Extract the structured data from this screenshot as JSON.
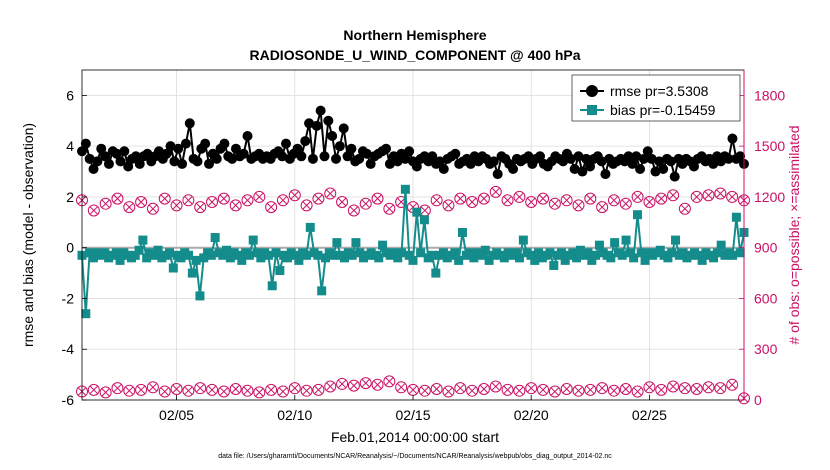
{
  "chart_data": {
    "type": "line",
    "title": "Northern Hemisphere",
    "subtitle": "RADIOSONDE_U_WIND_COMPONENT @ 400 hPa",
    "xlabel": "Feb.01,2014 00:00:00 start",
    "ylabel_left": "rmse and bias (model - observation)",
    "ylabel_right": "# of obs: o=possible; ×=assimilated",
    "footer": "data file: /Users/gharamti/Documents/NCAR/Reanalysis/~/Documents/NCAR/Reanalysis/webpub/obs_diag_output_2014-02.nc",
    "xlim": [
      1,
      29
    ],
    "ylim_left": [
      -6,
      7
    ],
    "ylim_right": [
      0,
      1950
    ],
    "x_ticks": [
      5,
      10,
      15,
      20,
      25
    ],
    "x_tick_labels": [
      "02/05",
      "02/10",
      "02/15",
      "02/20",
      "02/25"
    ],
    "y_ticks_left": [
      -6,
      -4,
      -2,
      0,
      2,
      4,
      6
    ],
    "y_ticks_right": [
      0,
      300,
      600,
      900,
      1200,
      1500,
      1800
    ],
    "grid": true,
    "legend_position": "top-right",
    "colors": {
      "rmse": "#000000",
      "bias": "#158c8c",
      "obs": "#cc1166",
      "zero_line": "#aaaaaa"
    },
    "series": [
      {
        "name": "rmse",
        "legend": "rmse pr=3.5308",
        "values": [
          3.8,
          4.1,
          3.5,
          3.1,
          3.4,
          3.9,
          3.6,
          3.3,
          3.8,
          3.7,
          3.4,
          3.8,
          3.2,
          3.5,
          3.6,
          3.3,
          3.6,
          3.7,
          3.4,
          3.6,
          3.8,
          3.5,
          3.7,
          4.0,
          3.4,
          3.9,
          3.3,
          4.1,
          4.9,
          3.5,
          3.4,
          3.9,
          4.1,
          3.3,
          3.7,
          3.5,
          3.9,
          4.1,
          3.6,
          3.5,
          3.9,
          3.6,
          3.7,
          4.4,
          3.5,
          3.6,
          3.7,
          3.5,
          3.6,
          3.5,
          3.7,
          3.8,
          3.6,
          4.1,
          3.5,
          3.7,
          3.9,
          3.6,
          4.2,
          4.9,
          3.5,
          4.8,
          5.4,
          3.6,
          5.0,
          4.4,
          3.5,
          4.0,
          4.7,
          3.6,
          3.9,
          3.4,
          3.5,
          3.8,
          3.7,
          3.3,
          3.6,
          3.7,
          3.8,
          3.9,
          3.3,
          3.6,
          3.4,
          3.7,
          3.5,
          3.8,
          3.4,
          3.2,
          3.5,
          3.6,
          3.4,
          3.6,
          3.3,
          3.4,
          3.1,
          3.5,
          3.6,
          3.7,
          3.3,
          3.4,
          3.5,
          3.3,
          3.6,
          3.4,
          3.6,
          3.5,
          3.3,
          3.4,
          2.9,
          3.6,
          3.5,
          3.3,
          3.1,
          3.5,
          3.4,
          3.5,
          3.6,
          3.3,
          3.5,
          3.6,
          3.3,
          3.2,
          3.4,
          3.6,
          3.5,
          3.4,
          3.7,
          3.5,
          3.1,
          3.6,
          3.0,
          3.5,
          3.2,
          3.5,
          3.6,
          3.4,
          2.9,
          3.5,
          3.3,
          3.4,
          3.5,
          3.4,
          3.6,
          3.3,
          3.6,
          3.1,
          3.5,
          3.8,
          3.5,
          3.0,
          3.4,
          3.1,
          3.5,
          3.4,
          2.8,
          3.5,
          3.3,
          3.5,
          3.4,
          3.2,
          3.5,
          3.6,
          3.4,
          3.5,
          3.3,
          3.6,
          3.4,
          3.6,
          3.5,
          4.3,
          3.5,
          3.6,
          3.3
        ]
      },
      {
        "name": "bias",
        "legend": "bias pr=-0.15459",
        "values": [
          -0.3,
          -2.6,
          -0.2,
          -0.4,
          -0.2,
          -0.3,
          -0.2,
          -0.4,
          -0.3,
          -0.2,
          -0.5,
          -0.2,
          -0.3,
          -0.4,
          -0.3,
          -0.1,
          0.3,
          -0.4,
          -0.2,
          -0.3,
          -0.1,
          -0.4,
          -0.3,
          -0.2,
          -0.8,
          -0.3,
          -0.4,
          -0.2,
          -0.3,
          -1.0,
          -0.5,
          -1.9,
          -0.4,
          -0.2,
          -0.3,
          0.4,
          -0.2,
          -0.3,
          -0.1,
          -0.4,
          -0.2,
          -0.3,
          -0.5,
          -0.2,
          -0.3,
          0.3,
          -0.2,
          -0.4,
          -0.2,
          -0.3,
          -1.5,
          -0.2,
          -0.9,
          -0.3,
          -0.4,
          -0.2,
          -0.3,
          -0.5,
          -0.2,
          -0.3,
          0.8,
          -0.2,
          -0.3,
          -1.7,
          -0.4,
          -0.2,
          -0.3,
          0.2,
          -0.3,
          -0.4,
          -0.2,
          -0.3,
          0.2,
          -0.2,
          -0.4,
          -0.3,
          -0.2,
          -0.3,
          -0.4,
          0.1,
          -0.2,
          -0.3,
          -0.2,
          -0.4,
          -0.2,
          2.3,
          -0.3,
          -0.5,
          1.4,
          -0.2,
          1.1,
          -0.4,
          -0.3,
          -1.0,
          -0.3,
          -0.2,
          -0.4,
          -0.3,
          -0.2,
          -0.5,
          0.6,
          -0.3,
          -0.2,
          -0.4,
          -0.2,
          -0.3,
          -0.1,
          -0.5,
          -0.3,
          -0.2,
          -0.3,
          -0.4,
          -0.2,
          -0.3,
          -0.2,
          -0.4,
          0.3,
          -0.2,
          -0.3,
          -0.5,
          -0.2,
          -0.4,
          -0.3,
          -0.2,
          -0.7,
          -0.3,
          -0.2,
          -0.5,
          -0.3,
          -0.2,
          -0.4,
          -0.1,
          -0.3,
          -0.2,
          -0.5,
          -0.3,
          0.1,
          -0.2,
          -0.3,
          -0.4,
          0.2,
          -0.2,
          -0.3,
          0.3,
          -0.2,
          -0.4,
          1.3,
          -0.2,
          -0.5,
          -0.2,
          -0.3,
          -0.2,
          -0.1,
          -0.3,
          -0.4,
          -0.2,
          0.3,
          -0.3,
          -0.2,
          -0.4,
          -0.3,
          -0.2,
          -0.3,
          -0.5,
          -0.2,
          -0.3,
          -0.4,
          -0.2,
          0.1,
          -0.3,
          -0.2,
          -0.3,
          1.2,
          -0.2,
          0.6
        ]
      }
    ],
    "obs_possible": [
      {
        "x": 1.0,
        "v": 1180
      },
      {
        "x": 1.5,
        "v": 1120
      },
      {
        "x": 2.0,
        "v": 1160
      },
      {
        "x": 2.5,
        "v": 1190
      },
      {
        "x": 3.0,
        "v": 1140
      },
      {
        "x": 3.5,
        "v": 1170
      },
      {
        "x": 4.0,
        "v": 1130
      },
      {
        "x": 4.5,
        "v": 1190
      },
      {
        "x": 5.0,
        "v": 1150
      },
      {
        "x": 5.5,
        "v": 1180
      },
      {
        "x": 6.0,
        "v": 1140
      },
      {
        "x": 6.5,
        "v": 1170
      },
      {
        "x": 7.0,
        "v": 1190
      },
      {
        "x": 7.5,
        "v": 1150
      },
      {
        "x": 8.0,
        "v": 1180
      },
      {
        "x": 8.5,
        "v": 1200
      },
      {
        "x": 9.0,
        "v": 1140
      },
      {
        "x": 9.5,
        "v": 1180
      },
      {
        "x": 10.0,
        "v": 1210
      },
      {
        "x": 10.5,
        "v": 1150
      },
      {
        "x": 11.0,
        "v": 1190
      },
      {
        "x": 11.5,
        "v": 1220
      },
      {
        "x": 12.0,
        "v": 1170
      },
      {
        "x": 12.5,
        "v": 1120
      },
      {
        "x": 13.0,
        "v": 1160
      },
      {
        "x": 13.5,
        "v": 1190
      },
      {
        "x": 14.0,
        "v": 1130
      },
      {
        "x": 14.5,
        "v": 1170
      },
      {
        "x": 15.0,
        "v": 1140
      },
      {
        "x": 15.5,
        "v": 1120
      },
      {
        "x": 16.0,
        "v": 1180
      },
      {
        "x": 16.5,
        "v": 1150
      },
      {
        "x": 17.0,
        "v": 1190
      },
      {
        "x": 17.5,
        "v": 1170
      },
      {
        "x": 18.0,
        "v": 1190
      },
      {
        "x": 18.5,
        "v": 1230
      },
      {
        "x": 19.0,
        "v": 1180
      },
      {
        "x": 19.5,
        "v": 1200
      },
      {
        "x": 20.0,
        "v": 1170
      },
      {
        "x": 20.5,
        "v": 1190
      },
      {
        "x": 21.0,
        "v": 1160
      },
      {
        "x": 21.5,
        "v": 1180
      },
      {
        "x": 22.0,
        "v": 1150
      },
      {
        "x": 22.5,
        "v": 1190
      },
      {
        "x": 23.0,
        "v": 1140
      },
      {
        "x": 23.5,
        "v": 1180
      },
      {
        "x": 24.0,
        "v": 1160
      },
      {
        "x": 24.5,
        "v": 1200
      },
      {
        "x": 25.0,
        "v": 1170
      },
      {
        "x": 25.5,
        "v": 1190
      },
      {
        "x": 26.0,
        "v": 1210
      },
      {
        "x": 26.5,
        "v": 1130
      },
      {
        "x": 27.0,
        "v": 1200
      },
      {
        "x": 27.5,
        "v": 1210
      },
      {
        "x": 28.0,
        "v": 1220
      },
      {
        "x": 28.5,
        "v": 1200
      },
      {
        "x": 29.0,
        "v": 1180
      }
    ],
    "obs_assimilated": [
      {
        "x": 1.0,
        "v": 50
      },
      {
        "x": 1.5,
        "v": 60
      },
      {
        "x": 2.0,
        "v": 45
      },
      {
        "x": 2.5,
        "v": 70
      },
      {
        "x": 3.0,
        "v": 55
      },
      {
        "x": 3.5,
        "v": 60
      },
      {
        "x": 4.0,
        "v": 75
      },
      {
        "x": 4.5,
        "v": 50
      },
      {
        "x": 5.0,
        "v": 65
      },
      {
        "x": 5.5,
        "v": 55
      },
      {
        "x": 6.0,
        "v": 70
      },
      {
        "x": 6.5,
        "v": 60
      },
      {
        "x": 7.0,
        "v": 50
      },
      {
        "x": 7.5,
        "v": 65
      },
      {
        "x": 8.0,
        "v": 55
      },
      {
        "x": 8.5,
        "v": 45
      },
      {
        "x": 9.0,
        "v": 60
      },
      {
        "x": 9.5,
        "v": 50
      },
      {
        "x": 10.0,
        "v": 70
      },
      {
        "x": 10.5,
        "v": 55
      },
      {
        "x": 11.0,
        "v": 60
      },
      {
        "x": 11.5,
        "v": 80
      },
      {
        "x": 12.0,
        "v": 95
      },
      {
        "x": 12.5,
        "v": 85
      },
      {
        "x": 13.0,
        "v": 100
      },
      {
        "x": 13.5,
        "v": 90
      },
      {
        "x": 14.0,
        "v": 110
      },
      {
        "x": 14.5,
        "v": 75
      },
      {
        "x": 15.0,
        "v": 60
      },
      {
        "x": 15.5,
        "v": 55
      },
      {
        "x": 16.0,
        "v": 65
      },
      {
        "x": 16.5,
        "v": 50
      },
      {
        "x": 17.0,
        "v": 70
      },
      {
        "x": 17.5,
        "v": 55
      },
      {
        "x": 18.0,
        "v": 65
      },
      {
        "x": 18.5,
        "v": 80
      },
      {
        "x": 19.0,
        "v": 60
      },
      {
        "x": 19.5,
        "v": 55
      },
      {
        "x": 20.0,
        "v": 70
      },
      {
        "x": 20.5,
        "v": 60
      },
      {
        "x": 21.0,
        "v": 50
      },
      {
        "x": 21.5,
        "v": 65
      },
      {
        "x": 22.0,
        "v": 55
      },
      {
        "x": 22.5,
        "v": 60
      },
      {
        "x": 23.0,
        "v": 70
      },
      {
        "x": 23.5,
        "v": 55
      },
      {
        "x": 24.0,
        "v": 65
      },
      {
        "x": 24.5,
        "v": 50
      },
      {
        "x": 25.0,
        "v": 75
      },
      {
        "x": 25.5,
        "v": 60
      },
      {
        "x": 26.0,
        "v": 80
      },
      {
        "x": 26.5,
        "v": 70
      },
      {
        "x": 27.0,
        "v": 65
      },
      {
        "x": 27.5,
        "v": 75
      },
      {
        "x": 28.0,
        "v": 70
      },
      {
        "x": 28.5,
        "v": 90
      },
      {
        "x": 29.0,
        "v": 10
      }
    ]
  }
}
